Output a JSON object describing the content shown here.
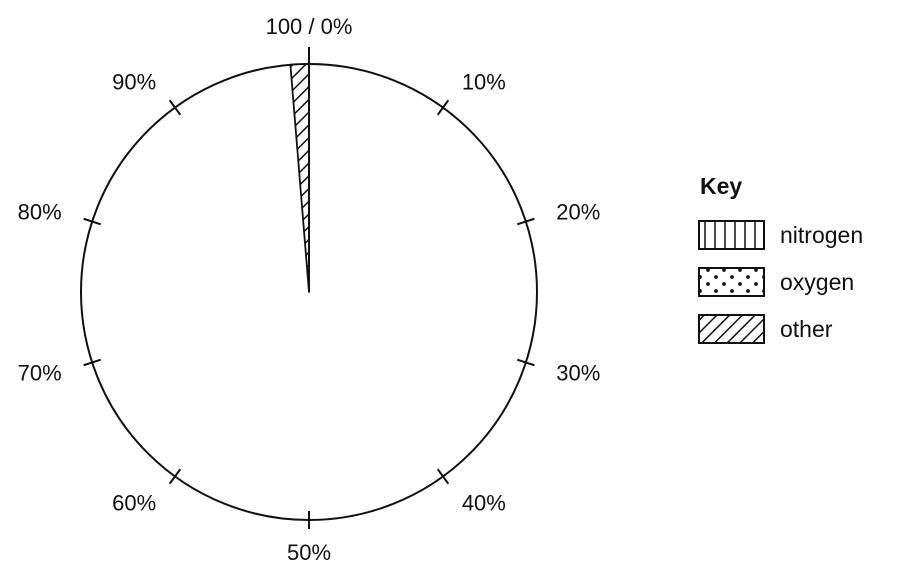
{
  "chart_data": {
    "type": "pie",
    "title": "",
    "scale": {
      "labels": [
        "100 / 0%",
        "10%",
        "20%",
        "30%",
        "40%",
        "50%",
        "60%",
        "70%",
        "80%",
        "90%"
      ]
    },
    "legend": {
      "title": "Key",
      "placement": "right",
      "entries": [
        {
          "name": "nitrogen",
          "pattern": "vertical-lines"
        },
        {
          "name": "oxygen",
          "pattern": "dots"
        },
        {
          "name": "other",
          "pattern": "diagonal-hatch"
        }
      ]
    },
    "segments": [
      {
        "name": "other",
        "pattern": "diagonal-hatch",
        "start_percent": 98.7,
        "end_percent": 100
      }
    ],
    "colors": {
      "ink": "#111111",
      "background": "#ffffff"
    }
  }
}
